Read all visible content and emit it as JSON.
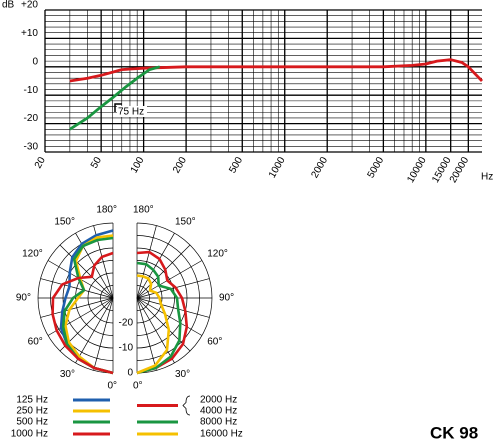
{
  "title": "CK 98",
  "chart_data": [
    {
      "type": "line",
      "y_axis_label": "dB",
      "x_axis_label": "Hz",
      "annotation": "75 Hz",
      "log_x": true,
      "xlim": [
        20,
        25000
      ],
      "ylim": [
        -30,
        20
      ],
      "xticks": [
        20,
        50,
        100,
        200,
        500,
        1000,
        2000,
        5000,
        10000,
        15000,
        20000
      ],
      "yticks": [
        -30,
        -20,
        -10,
        0,
        {
          "value": 10,
          "label": "+10"
        },
        {
          "value": 20,
          "label": "+20"
        }
      ],
      "xgrid": [
        20,
        30,
        40,
        50,
        60,
        70,
        80,
        90,
        100,
        200,
        300,
        400,
        500,
        600,
        700,
        800,
        900,
        1000,
        2000,
        3000,
        4000,
        5000,
        6000,
        7000,
        8000,
        9000,
        10000,
        15000,
        20000
      ],
      "ygrid": [
        -30,
        -28,
        -26,
        -24,
        -22,
        -20,
        -18,
        -16,
        -14,
        -12,
        -10,
        -8,
        -6,
        -4,
        -2,
        0,
        2,
        4,
        6,
        8,
        10,
        12,
        14,
        16,
        18,
        20
      ],
      "series": [
        {
          "color": "#d7191c",
          "x": [
            30,
            40,
            50,
            70,
            100,
            200,
            500,
            1000,
            2000,
            5000,
            8000,
            10000,
            12000,
            15000,
            18000,
            20000,
            25000
          ],
          "values": [
            -5,
            -4,
            -3,
            -1,
            -0.5,
            0,
            0,
            0,
            0,
            0,
            0.5,
            1,
            2,
            2.5,
            1.5,
            0,
            -5
          ]
        },
        {
          "color": "#1a9641",
          "x": [
            30,
            40,
            50,
            60,
            75,
            90,
            110,
            130
          ],
          "values": [
            -22,
            -18,
            -14,
            -11,
            -7,
            -4,
            -1,
            0
          ]
        }
      ]
    },
    {
      "type": "polar",
      "angles": [
        0,
        15,
        30,
        45,
        60,
        75,
        90,
        105,
        120,
        135,
        150,
        165,
        180
      ],
      "rlim": [
        -30,
        0
      ],
      "rticks": [
        -20,
        -10,
        0
      ],
      "rgrid": [
        -25,
        -20,
        -15,
        -10,
        -5,
        0
      ],
      "angle_ticks": [
        {
          "value": 0,
          "label": "0°"
        },
        {
          "value": 30,
          "label": "30°"
        },
        {
          "value": 60,
          "label": "60°"
        },
        {
          "value": 90,
          "label": "90°"
        },
        {
          "value": 120,
          "label": "120°"
        },
        {
          "value": 150,
          "label": "150°"
        },
        {
          "value": 180,
          "label": "180°"
        }
      ],
      "angle_grid": [
        0,
        15,
        30,
        45,
        60,
        75,
        90,
        105,
        120,
        135,
        150,
        165,
        180
      ],
      "panels": [
        {
          "side": "left",
          "series": [
            {
              "names": [
                "125 Hz"
              ],
              "color": "#1f5fae",
              "values": [
                0,
                -1,
                -2,
                -4,
                -6,
                -9,
                -11,
                -12,
                -10,
                -7,
                -5,
                -4,
                -3
              ]
            },
            {
              "names": [
                "250 Hz"
              ],
              "color": "#f5c000",
              "values": [
                0,
                -1,
                -3,
                -5,
                -8,
                -12,
                -16,
                -18,
                -15,
                -9,
                -6,
                -5,
                -5
              ]
            },
            {
              "names": [
                "500 Hz"
              ],
              "color": "#1a9641",
              "values": [
                0,
                -1,
                -2,
                -4,
                -7,
                -10,
                -14,
                -18,
                -14,
                -8,
                -6,
                -6,
                -6
              ]
            },
            {
              "names": [
                "1000 Hz"
              ],
              "color": "#d7191c",
              "values": [
                0,
                -1,
                -2,
                -3,
                -4,
                -5,
                -6,
                -9,
                -14,
                -18,
                -15,
                -13,
                -12
              ]
            }
          ]
        },
        {
          "side": "right",
          "series": [
            {
              "names": [
                "2000 Hz",
                "4000 Hz"
              ],
              "color": "#d7191c",
              "values": [
                0,
                -1,
                -2,
                -4,
                -7,
                -10,
                -12,
                -14,
                -16,
                -14,
                -12,
                -11,
                -12
              ]
            },
            {
              "names": [
                "8000 Hz"
              ],
              "color": "#1a9641",
              "values": [
                0,
                -1,
                -3,
                -6,
                -10,
                -13,
                -14,
                -16,
                -20,
                -18,
                -17,
                -16,
                -16
              ]
            },
            {
              "names": [
                "16000 Hz"
              ],
              "color": "#f5c000",
              "values": [
                0,
                -2,
                -6,
                -12,
                -17,
                -20,
                -21,
                -22,
                -24,
                -22,
                -21,
                -21,
                -21
              ]
            }
          ]
        }
      ]
    }
  ]
}
